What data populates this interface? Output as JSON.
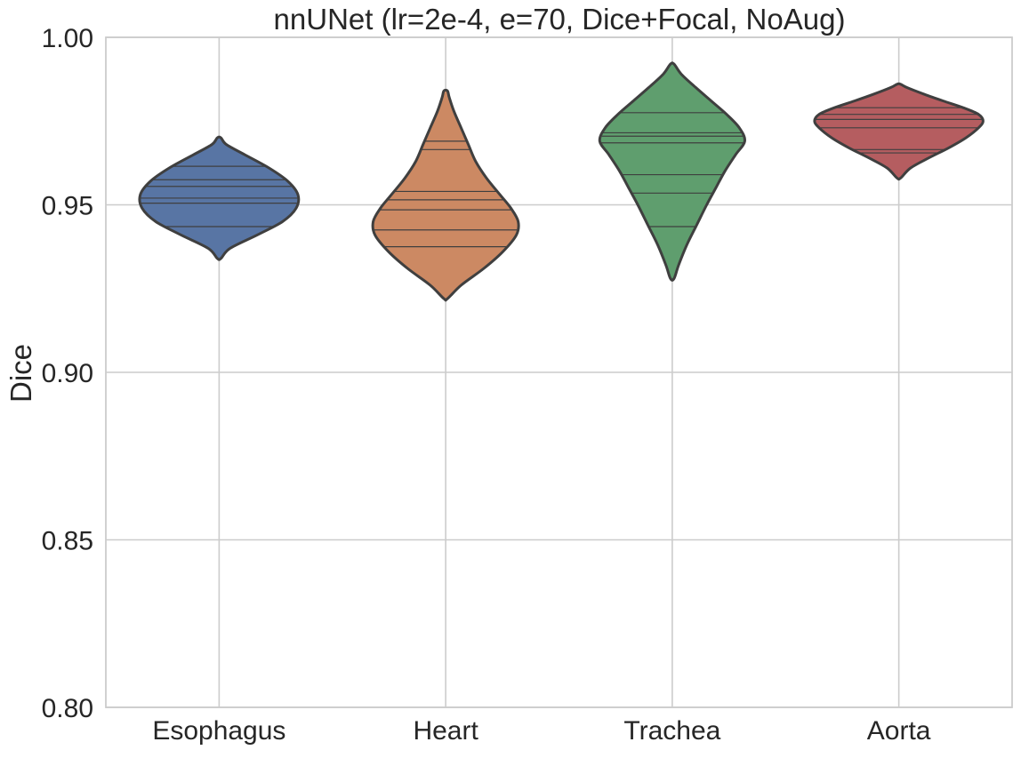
{
  "chart_data": {
    "type": "violin",
    "title": "nnUNet (lr=2e-4, e=70, Dice+Focal, NoAug)",
    "xlabel": "",
    "ylabel": "Dice",
    "ylim": [
      0.8,
      1.0
    ],
    "yticks": [
      0.8,
      0.85,
      0.9,
      0.95,
      1.0
    ],
    "ytick_labels": [
      "0.80",
      "0.85",
      "0.90",
      "0.95",
      "1.00"
    ],
    "grid": true,
    "inner": "stick",
    "categories": [
      "Esophagus",
      "Heart",
      "Trachea",
      "Aorta"
    ],
    "series": [
      {
        "name": "Esophagus",
        "color": "#5875A4",
        "min": 0.934,
        "max": 0.97,
        "width_profile": [
          [
            0.934,
            0.02
          ],
          [
            0.937,
            0.12
          ],
          [
            0.941,
            0.42
          ],
          [
            0.945,
            0.7
          ],
          [
            0.949,
            0.85
          ],
          [
            0.953,
            0.87
          ],
          [
            0.957,
            0.76
          ],
          [
            0.961,
            0.55
          ],
          [
            0.965,
            0.28
          ],
          [
            0.968,
            0.08
          ],
          [
            0.97,
            0.02
          ]
        ],
        "sticks": [
          0.9435,
          0.9505,
          0.952,
          0.9555,
          0.9575,
          0.9615
        ]
      },
      {
        "name": "Heart",
        "color": "#CC8963",
        "min": 0.922,
        "max": 0.984,
        "width_profile": [
          [
            0.922,
            0.02
          ],
          [
            0.926,
            0.17
          ],
          [
            0.931,
            0.42
          ],
          [
            0.936,
            0.63
          ],
          [
            0.941,
            0.78
          ],
          [
            0.945,
            0.8
          ],
          [
            0.949,
            0.72
          ],
          [
            0.953,
            0.6
          ],
          [
            0.958,
            0.45
          ],
          [
            0.963,
            0.33
          ],
          [
            0.968,
            0.25
          ],
          [
            0.973,
            0.17
          ],
          [
            0.978,
            0.09
          ],
          [
            0.982,
            0.04
          ],
          [
            0.984,
            0.02
          ]
        ],
        "sticks": [
          0.9375,
          0.9425,
          0.9485,
          0.9515,
          0.954,
          0.9665,
          0.969
        ]
      },
      {
        "name": "Trachea",
        "color": "#5F9E6E",
        "min": 0.928,
        "max": 0.992,
        "width_profile": [
          [
            0.928,
            0.02
          ],
          [
            0.932,
            0.07
          ],
          [
            0.938,
            0.16
          ],
          [
            0.944,
            0.27
          ],
          [
            0.95,
            0.38
          ],
          [
            0.955,
            0.48
          ],
          [
            0.96,
            0.58
          ],
          [
            0.965,
            0.7
          ],
          [
            0.969,
            0.8
          ],
          [
            0.973,
            0.74
          ],
          [
            0.977,
            0.6
          ],
          [
            0.981,
            0.43
          ],
          [
            0.985,
            0.26
          ],
          [
            0.989,
            0.1
          ],
          [
            0.992,
            0.02
          ]
        ],
        "sticks": [
          0.9435,
          0.9535,
          0.959,
          0.9685,
          0.9705,
          0.9715,
          0.9775
        ]
      },
      {
        "name": "Aorta",
        "color": "#B55D60",
        "min": 0.958,
        "max": 0.986,
        "width_profile": [
          [
            0.958,
            0.02
          ],
          [
            0.961,
            0.13
          ],
          [
            0.964,
            0.33
          ],
          [
            0.967,
            0.55
          ],
          [
            0.97,
            0.74
          ],
          [
            0.973,
            0.88
          ],
          [
            0.975,
            0.93
          ],
          [
            0.977,
            0.88
          ],
          [
            0.979,
            0.71
          ],
          [
            0.981,
            0.49
          ],
          [
            0.983,
            0.28
          ],
          [
            0.985,
            0.09
          ],
          [
            0.986,
            0.02
          ]
        ],
        "sticks": [
          0.9655,
          0.9665,
          0.973,
          0.9755,
          0.977,
          0.979
        ]
      }
    ]
  }
}
